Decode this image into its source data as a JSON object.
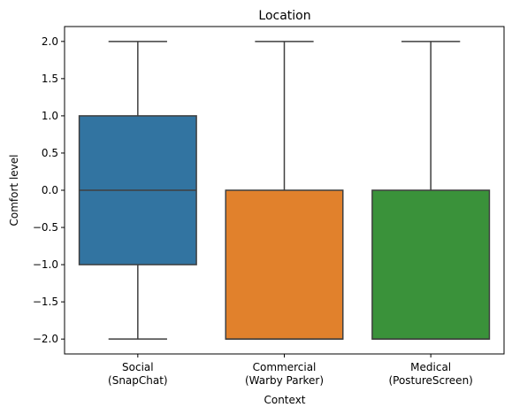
{
  "chart_data": {
    "type": "box",
    "title": "Location",
    "xlabel": "Context",
    "ylabel": "Comfort level",
    "ylim": [
      -2.2,
      2.2
    ],
    "yticks": [
      -2.0,
      -1.5,
      -1.0,
      -0.5,
      0.0,
      0.5,
      1.0,
      1.5,
      2.0
    ],
    "ytick_labels": [
      "−2.0",
      "−1.5",
      "−1.0",
      "−0.5",
      "0.0",
      "0.5",
      "1.0",
      "1.5",
      "2.0"
    ],
    "grid": false,
    "categories": [
      [
        "Social",
        "(SnapChat)"
      ],
      [
        "Commercial",
        "(Warby Parker)"
      ],
      [
        "Medical",
        "(PostureScreen)"
      ]
    ],
    "boxes": [
      {
        "whisker_low": -2.0,
        "q1": -1.0,
        "median": 0.0,
        "q3": 1.0,
        "whisker_high": 2.0,
        "color": "#3274a1"
      },
      {
        "whisker_low": -2.0,
        "q1": -2.0,
        "median": -2.0,
        "q3": 0.0,
        "whisker_high": 2.0,
        "color": "#e1812c"
      },
      {
        "whisker_low": -2.0,
        "q1": -2.0,
        "median": -2.0,
        "q3": 0.0,
        "whisker_high": 2.0,
        "color": "#3a923a"
      }
    ],
    "line_color": "#3f3f3f"
  }
}
